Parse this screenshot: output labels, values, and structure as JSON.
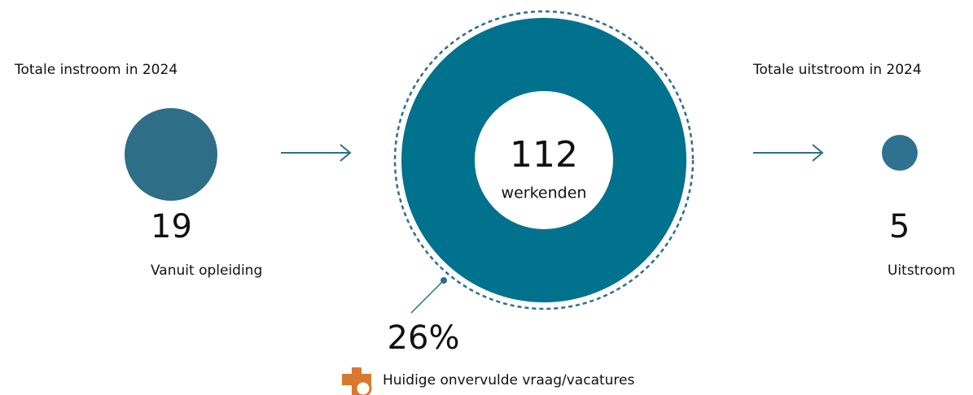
{
  "inflow": {
    "title": "Totale instroom in 2024",
    "value": "19",
    "label": "Vanuit opleiding"
  },
  "workforce": {
    "value": "112",
    "label": "werkenden"
  },
  "outflow": {
    "title": "Totale uitstroom in 2024",
    "value": "5",
    "label": "Uitstroom"
  },
  "vacancy": {
    "value": "26%",
    "label": "Huidige onvervulde vraag/vacatures"
  }
}
